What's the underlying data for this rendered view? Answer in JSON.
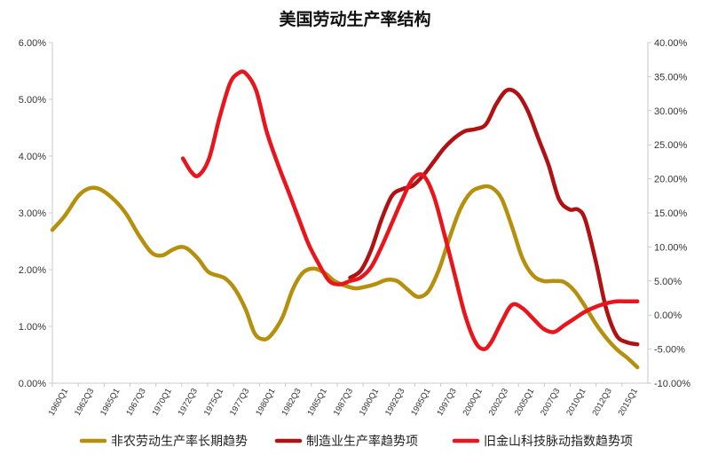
{
  "chart_data": {
    "type": "line",
    "title": "美国劳动生产率结构",
    "x_ticks": [
      "1960Q1",
      "1962Q3",
      "1965Q1",
      "1967Q3",
      "1970Q1",
      "1972Q3",
      "1975Q1",
      "1977Q3",
      "1980Q1",
      "1982Q3",
      "1985Q1",
      "1987Q3",
      "1990Q1",
      "1992Q3",
      "1995Q1",
      "1997Q3",
      "2000Q1",
      "2002Q3",
      "2005Q1",
      "2007Q3",
      "2010Q1",
      "2012Q3",
      "2015Q1"
    ],
    "x_range": [
      1960.0,
      2017.0
    ],
    "y_left": {
      "range": [
        0,
        6
      ],
      "ticks": [
        0,
        1,
        2,
        3,
        4,
        5,
        6
      ],
      "tick_labels": [
        "0.00%",
        "1.00%",
        "2.00%",
        "3.00%",
        "4.00%",
        "5.00%",
        "6.00%"
      ]
    },
    "y_right": {
      "range": [
        -10,
        40
      ],
      "ticks": [
        -10,
        -5,
        0,
        5,
        10,
        15,
        20,
        25,
        30,
        35,
        40
      ],
      "tick_labels": [
        "-10.00%",
        "-5.00%",
        "0.00%",
        "5.00%",
        "10.00%",
        "15.00%",
        "20.00%",
        "25.00%",
        "30.00%",
        "35.00%",
        "40.00%"
      ]
    },
    "grid": false,
    "legend_position": "bottom",
    "series": [
      {
        "name": "非农劳动生产率长期趋势",
        "axis": "left",
        "color": "#b5900e",
        "points": [
          [
            1960.0,
            2.7
          ],
          [
            1961.2,
            2.95
          ],
          [
            1962.5,
            3.3
          ],
          [
            1963.5,
            3.43
          ],
          [
            1964.5,
            3.42
          ],
          [
            1965.8,
            3.25
          ],
          [
            1967.0,
            3.0
          ],
          [
            1968.3,
            2.6
          ],
          [
            1969.5,
            2.3
          ],
          [
            1970.5,
            2.25
          ],
          [
            1971.5,
            2.35
          ],
          [
            1972.3,
            2.4
          ],
          [
            1973.0,
            2.36
          ],
          [
            1974.0,
            2.18
          ],
          [
            1975.0,
            1.95
          ],
          [
            1976.5,
            1.85
          ],
          [
            1977.5,
            1.65
          ],
          [
            1978.5,
            1.3
          ],
          [
            1979.3,
            0.9
          ],
          [
            1980.0,
            0.78
          ],
          [
            1980.8,
            0.82
          ],
          [
            1982.0,
            1.15
          ],
          [
            1983.0,
            1.65
          ],
          [
            1984.0,
            1.95
          ],
          [
            1985.0,
            2.02
          ],
          [
            1986.0,
            1.95
          ],
          [
            1987.0,
            1.8
          ],
          [
            1988.0,
            1.72
          ],
          [
            1989.0,
            1.67
          ],
          [
            1990.0,
            1.7
          ],
          [
            1991.0,
            1.75
          ],
          [
            1992.0,
            1.82
          ],
          [
            1993.0,
            1.8
          ],
          [
            1994.0,
            1.65
          ],
          [
            1995.0,
            1.52
          ],
          [
            1996.0,
            1.62
          ],
          [
            1997.0,
            2.0
          ],
          [
            1998.0,
            2.55
          ],
          [
            1999.0,
            3.05
          ],
          [
            2000.0,
            3.35
          ],
          [
            2001.0,
            3.45
          ],
          [
            2002.0,
            3.45
          ],
          [
            2003.0,
            3.25
          ],
          [
            2004.0,
            2.75
          ],
          [
            2005.0,
            2.2
          ],
          [
            2006.0,
            1.9
          ],
          [
            2007.0,
            1.8
          ],
          [
            2008.0,
            1.8
          ],
          [
            2009.0,
            1.78
          ],
          [
            2010.0,
            1.62
          ],
          [
            2011.0,
            1.35
          ],
          [
            2012.0,
            1.05
          ],
          [
            2013.0,
            0.8
          ],
          [
            2014.0,
            0.6
          ],
          [
            2015.0,
            0.45
          ],
          [
            2016.0,
            0.28
          ]
        ]
      },
      {
        "name": "制造业生产率趋势项",
        "axis": "right",
        "color": "#b01214",
        "points": [
          [
            1988.5,
            5.5
          ],
          [
            1989.5,
            6.5
          ],
          [
            1990.5,
            9.5
          ],
          [
            1991.5,
            14.0
          ],
          [
            1992.5,
            17.5
          ],
          [
            1993.5,
            18.5
          ],
          [
            1994.5,
            19.0
          ],
          [
            1995.5,
            20.5
          ],
          [
            1996.5,
            22.5
          ],
          [
            1997.5,
            24.5
          ],
          [
            1998.5,
            26.0
          ],
          [
            1999.5,
            27.0
          ],
          [
            2000.5,
            27.3
          ],
          [
            2001.5,
            28.0
          ],
          [
            2002.5,
            31.0
          ],
          [
            2003.5,
            33.0
          ],
          [
            2004.5,
            32.5
          ],
          [
            2005.5,
            30.0
          ],
          [
            2006.5,
            26.0
          ],
          [
            2007.5,
            22.0
          ],
          [
            2008.5,
            17.0
          ],
          [
            2009.5,
            15.5
          ],
          [
            2010.3,
            15.5
          ],
          [
            2011.0,
            14.0
          ],
          [
            2012.0,
            8.0
          ],
          [
            2013.0,
            1.0
          ],
          [
            2014.0,
            -3.0
          ],
          [
            2015.0,
            -4.0
          ],
          [
            2016.0,
            -4.3
          ]
        ]
      },
      {
        "name": "旧金山科技脉动指数趋势项",
        "axis": "right",
        "color": "#e8161c",
        "points": [
          [
            1972.5,
            23.0
          ],
          [
            1973.3,
            21.0
          ],
          [
            1974.0,
            20.5
          ],
          [
            1975.0,
            23.0
          ],
          [
            1976.0,
            29.0
          ],
          [
            1977.0,
            34.0
          ],
          [
            1977.8,
            35.5
          ],
          [
            1978.5,
            35.5
          ],
          [
            1979.5,
            33.0
          ],
          [
            1980.5,
            27.0
          ],
          [
            1981.5,
            22.5
          ],
          [
            1982.5,
            18.5
          ],
          [
            1983.5,
            14.5
          ],
          [
            1984.5,
            10.5
          ],
          [
            1985.5,
            7.5
          ],
          [
            1986.5,
            5.0
          ],
          [
            1987.5,
            4.5
          ],
          [
            1988.5,
            5.0
          ],
          [
            1989.5,
            5.5
          ],
          [
            1990.5,
            7.0
          ],
          [
            1991.5,
            10.0
          ],
          [
            1992.5,
            13.5
          ],
          [
            1993.5,
            17.0
          ],
          [
            1994.5,
            20.0
          ],
          [
            1995.5,
            20.5
          ],
          [
            1996.5,
            17.5
          ],
          [
            1997.5,
            12.0
          ],
          [
            1998.5,
            6.0
          ],
          [
            1999.5,
            0.0
          ],
          [
            2000.5,
            -4.0
          ],
          [
            2001.3,
            -5.0
          ],
          [
            2002.0,
            -4.0
          ],
          [
            2003.0,
            -1.0
          ],
          [
            2004.0,
            1.5
          ],
          [
            2005.0,
            1.0
          ],
          [
            2006.0,
            -0.5
          ],
          [
            2007.0,
            -2.0
          ],
          [
            2008.0,
            -2.5
          ],
          [
            2009.0,
            -1.5
          ],
          [
            2010.0,
            -0.5
          ],
          [
            2011.0,
            0.5
          ],
          [
            2012.0,
            1.2
          ],
          [
            2013.0,
            1.7
          ],
          [
            2014.0,
            2.0
          ],
          [
            2015.0,
            2.0
          ],
          [
            2016.0,
            2.0
          ]
        ]
      }
    ]
  },
  "colors": {
    "axis": "#c8c8c8",
    "background": "#ffffff"
  }
}
